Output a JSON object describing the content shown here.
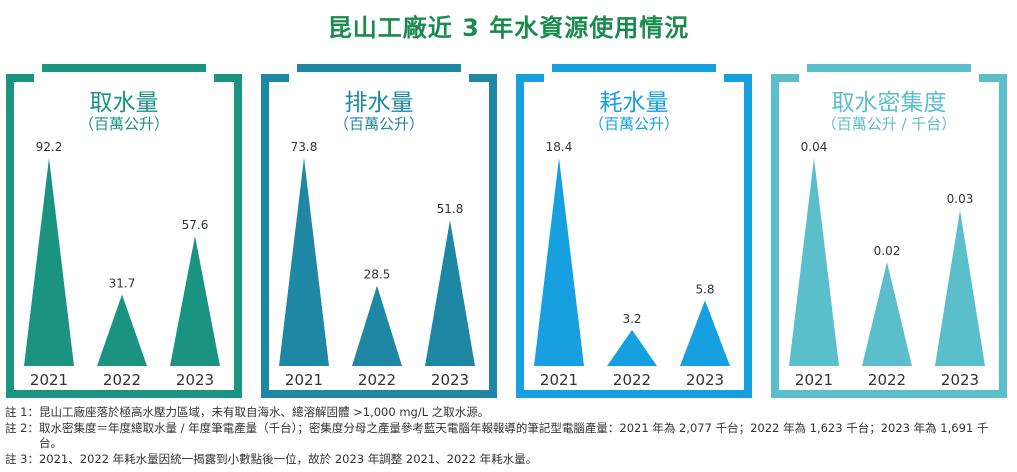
{
  "page_title": "昆山工廠近 3 年水資源使用情況",
  "colors": {
    "title": "#1b8a4e",
    "panel_1": "#1a9480",
    "panel_2": "#1e87a3",
    "panel_3": "#16a0e0",
    "panel_4": "#5bbfcb"
  },
  "chart_data": [
    {
      "type": "bar",
      "mark": "triangle",
      "title": "取水量",
      "unit": "（百萬公升）",
      "categories": [
        "2021",
        "2022",
        "2023"
      ],
      "values": [
        92.2,
        31.7,
        57.6
      ],
      "value_labels": [
        "92.2",
        "31.7",
        "57.6"
      ],
      "color": "#1a9480"
    },
    {
      "type": "bar",
      "mark": "triangle",
      "title": "排水量",
      "unit": "（百萬公升）",
      "categories": [
        "2021",
        "2022",
        "2023"
      ],
      "values": [
        73.8,
        28.5,
        51.8
      ],
      "value_labels": [
        "73.8",
        "28.5",
        "51.8"
      ],
      "color": "#1e87a3"
    },
    {
      "type": "bar",
      "mark": "triangle",
      "title": "耗水量",
      "unit": "（百萬公升）",
      "categories": [
        "2021",
        "2022",
        "2023"
      ],
      "values": [
        18.4,
        3.2,
        5.8
      ],
      "value_labels": [
        "18.4",
        "3.2",
        "5.8"
      ],
      "color": "#16a0e0"
    },
    {
      "type": "bar",
      "mark": "triangle",
      "title": "取水密集度",
      "unit": "（百萬公升 / 千台）",
      "categories": [
        "2021",
        "2022",
        "2023"
      ],
      "values": [
        0.04,
        0.02,
        0.03
      ],
      "value_labels": [
        "0.04",
        "0.02",
        "0.03"
      ],
      "color": "#5bbfcb"
    }
  ],
  "notes": [
    {
      "mark": "註 1：",
      "text": "昆山工廠座落於極高水壓力區域，未有取自海水、總溶解固體 >1,000 mg/L 之取水源。"
    },
    {
      "mark": "註 2：",
      "text": "取水密集度＝年度總取水量 / 年度筆電產量（千台）；密集度分母之產量參考藍天電腦年報報導的筆記型電腦產量：2021 年為 2,077 千台；2022 年為 1,623 千台；2023 年為 1,691 千台。"
    },
    {
      "mark": "註 3：",
      "text": "2021、2022 年耗水量因統一揭露到小數點後一位，故於 2023 年調整 2021、2022 年耗水量。"
    }
  ]
}
